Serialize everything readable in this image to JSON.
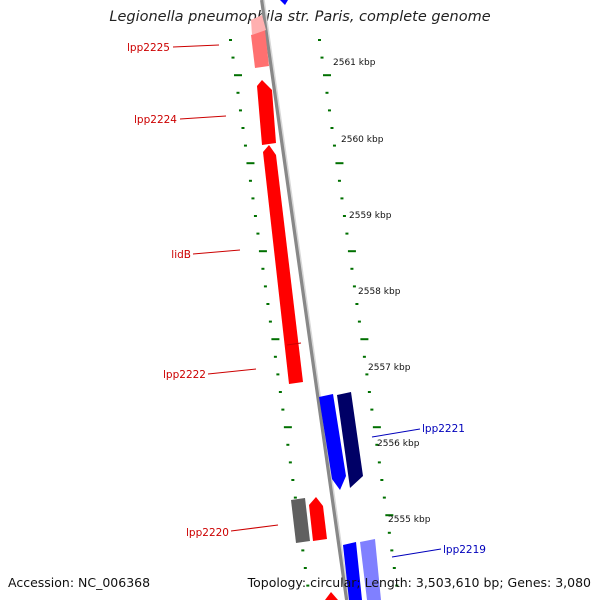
{
  "title": "Legionella pneumophila str. Paris, complete genome",
  "footer": {
    "accession": "Accession: NC_006368",
    "summary": "Topology: circular; Length: 3,503,610 bp; Genes: 3,080"
  },
  "colors": {
    "forward_gene": "#ff0000",
    "reverse_gene": "#0000ff",
    "reverse_gene_dark": "#000066",
    "reverse_gene_light": "#8080ff",
    "grey_gene": "#606060",
    "tick": "#007000",
    "backbone": "#888888",
    "label_red": "#cc0000",
    "label_blue": "#0000bb"
  },
  "ruler": [
    {
      "label": "2561 kbp"
    },
    {
      "label": "2560 kbp"
    },
    {
      "label": "2559 kbp"
    },
    {
      "label": "2558 kbp"
    },
    {
      "label": "2557 kbp"
    },
    {
      "label": "2556 kbp"
    },
    {
      "label": "2555 kbp"
    }
  ],
  "gene_labels": [
    {
      "name": "lpp2225",
      "strand": "forward"
    },
    {
      "name": "lpp2224",
      "strand": "forward"
    },
    {
      "name": "lidB",
      "strand": "forward"
    },
    {
      "name": "lpp2222",
      "strand": "forward"
    },
    {
      "name": "lpp2221",
      "strand": "reverse"
    },
    {
      "name": "lpp2220",
      "strand": "forward"
    },
    {
      "name": "lpp2219",
      "strand": "reverse"
    }
  ]
}
